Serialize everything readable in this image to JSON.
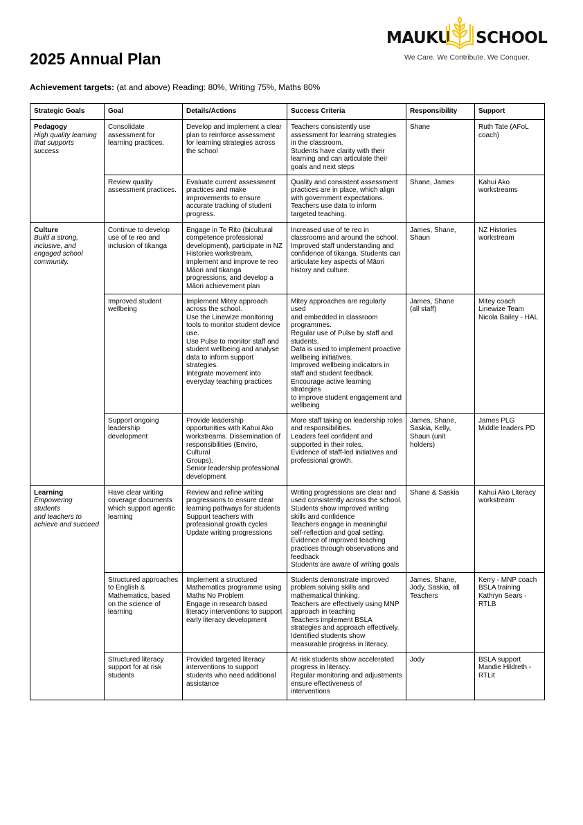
{
  "logo": {
    "word_left": "MAUKU",
    "word_right": "SCHOOL",
    "tagline": "We Care. We Contribute. We Conquer.",
    "accent": "#F5C518"
  },
  "title": "2025 Annual Plan",
  "targets": {
    "label": "Achievement targets:",
    "text": " (at and above) Reading: 80%, Writing 75%, Maths 80%"
  },
  "headers": [
    "Strategic Goals",
    "Goal",
    "Details/Actions",
    "Success Criteria",
    "Responsibility",
    "Support"
  ],
  "strategic": [
    {
      "title": "Pedagogy",
      "subtitle": "High quality learning\nthat supports success"
    },
    {
      "title": "Culture",
      "subtitle": "Build a strong,\ninclusive, and\nengaged school\ncommunity."
    },
    {
      "title": "Learning",
      "subtitle": "Empowering students\nand teachers to\nachieve and succeed"
    }
  ],
  "rows": [
    {
      "goal": "Consolidate\nassessment for\nlearning practices.",
      "details": "Develop and implement a clear\nplan to reinforce assessment\nfor learning strategies across\nthe school",
      "criteria": "Teachers consistently use\nassessment for learning strategies\nin the classroom.\nStudents have clarity with their\nlearning and can articulate their\ngoals and next steps",
      "responsibility": "Shane",
      "support": "Ruth Tate (AFoL\ncoach)"
    },
    {
      "goal": "Review quality\nassessment practices.",
      "details": "Evaluate current assessment\npractices and make\nimprovements to ensure\naccurate tracking of student\nprogress.",
      "criteria": "Quality and consistent assessment\npractices are in place, which align\nwith government expectations.\nTeachers use data to inform\ntargeted teaching.",
      "responsibility": "Shane, James",
      "support": "Kahui Ako\nworkstreams"
    },
    {
      "goal": "Continue to develop\nuse of te reo and\ninclusion of tikanga",
      "details": "Engage in Te Rito (bicultural\ncompetence professional\ndevelopment), participate in NZ\nHistories workstream,\nimplement and improve te reo\nMāori and tikanga\nprogressions, and develop a\nMāori achievement plan",
      "criteria": "Increased use of te reo in\nclassrooms and around the school.\nImproved staff understanding and\nconfidence of tikanga. Students can\narticulate key aspects of Māori\nhistory and culture.",
      "responsibility": "James, Shane,\nShaun",
      "support": "NZ Histories\nworkstream"
    },
    {
      "goal": "Improved student\nwellbeing",
      "details": "Implement Mitey approach\nacross the school.\nUse the Linewize monitoring\ntools to monitor student device\nuse.\nUse Pulse to monitor staff and\nstudent wellbeing and analyse\ndata to inform support\nstrategies.\nIntegrate movement into\neveryday teaching practices",
      "criteria": "Mitey approaches are regularly used\nand embedded in classroom\nprogrammes.\nRegular use of Pulse by staff and\nstudents.\nData is used to implement proactive\nwellbeing initiatives.\nImproved wellbeing indicators in\nstaff and student feedback.\nEncourage active learning strategies\nto improve student engagement and\nwellbeing",
      "responsibility": "James, Shane\n(all staff)",
      "support": "Mitey coach\nLinewize Team\nNicola Bailey - HAL"
    },
    {
      "goal": "Support ongoing\nleadership\ndevelopment",
      "details": "Provide leadership\nopportunities with Kahui Ako\nworkstreams. Dissemination of\nresponsibilities (Enviro, Cultural\nGroups).\nSenior leadership professional\ndevelopment",
      "criteria": "More staff taking on leadership roles\nand responsibilities.\nLeaders feel confident and\nsupported in their roles.\nEvidence of staff-led initiatives and\nprofessional growth.",
      "responsibility": "James, Shane,\nSaskia, Kelly,\nShaun (unit\nholders)",
      "support": "James PLG\nMiddle leaders PD"
    },
    {
      "goal": "Have clear writing\ncoverage documents\nwhich support agentic\nlearning",
      "details": "Review and refine writing\nprogressions to ensure clear\nlearning pathways for students\nSupport teachers with\nprofessional growth cycles\nUpdate writing progressions",
      "criteria": "Writing progressions are clear and\nused consistently across the school.\nStudents show improved writing\nskills and confidence\nTeachers engage in meaningful\nself-reflection and goal setting.\nEvidence of improved teaching\npractices through observations and\nfeedback\nStudents are aware of writing goals",
      "responsibility": "Shane & Saskia",
      "support": "Kahui Ako Literacy\nworkstream"
    },
    {
      "goal": "Structured approaches\nto English &\nMathematics, based\non the science of\nlearning",
      "details": "Implement a structured\nMathematics programme using\nMaths No Problem\nEngage in research based\nliteracy interventions to support\nearly literacy development",
      "criteria": "Students demonstrate improved\nproblem solving skills and\nmathematical thinking.\nTeachers are effectively using MNP\napproach in teaching\nTeachers implement BSLA\nstrategies and approach effectively.\nIdentified students show\nmeasurable progress in literacy.",
      "responsibility": "James, Shane,\nJody, Saskia, all\nTeachers",
      "support": "Kerry - MNP coach\nBSLA training\nKathryn Sears -\nRTLB"
    },
    {
      "goal": "Structured literacy\nsupport for at risk\nstudents",
      "details": "Provided targeted literacy\ninterventions to support\nstudents who need additional\nassistance",
      "criteria": "At risk students show accelerated\nprogress in literacy.\nRegular monitoring and adjustments\nensure effectiveness of\ninterventions",
      "responsibility": "Jody",
      "support": "BSLA support\nMandie Hildreth -\nRTLit"
    }
  ]
}
